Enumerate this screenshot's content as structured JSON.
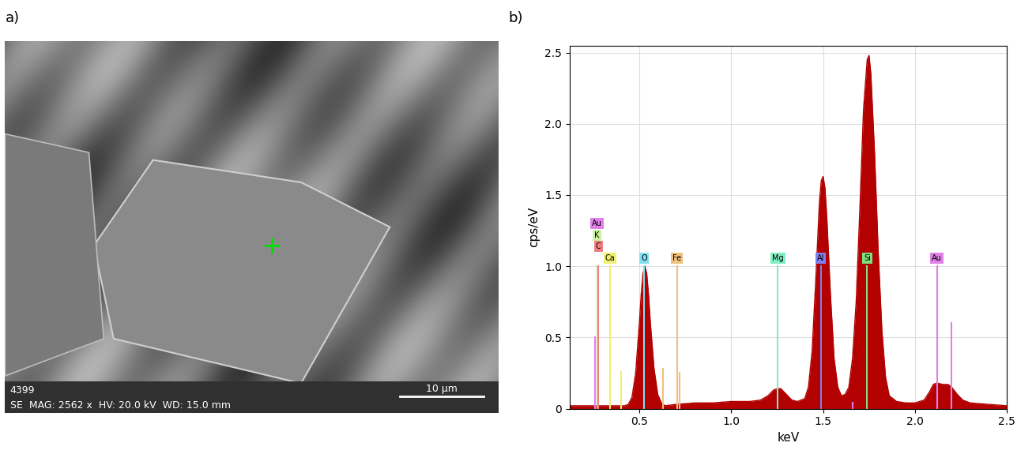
{
  "chart_data": [
    {
      "type": "image",
      "panel_label": "a)",
      "sample_id": "4399",
      "info_bar": "SE  MAG: 2562 x  HV: 20.0 kV  WD: 15.0 mm",
      "scale_bar": "10 µm"
    },
    {
      "type": "area",
      "panel_label": "b)",
      "xlabel": "keV",
      "ylabel": "cps/eV",
      "color": "#b30000",
      "x": [
        0.12,
        0.16,
        0.2,
        0.24,
        0.28,
        0.32,
        0.36,
        0.4,
        0.42,
        0.44,
        0.46,
        0.48,
        0.5,
        0.51,
        0.52,
        0.53,
        0.54,
        0.55,
        0.56,
        0.58,
        0.6,
        0.62,
        0.64,
        0.7,
        0.8,
        0.9,
        1.0,
        1.1,
        1.16,
        1.2,
        1.23,
        1.25,
        1.27,
        1.3,
        1.33,
        1.36,
        1.4,
        1.42,
        1.44,
        1.46,
        1.48,
        1.49,
        1.5,
        1.51,
        1.52,
        1.54,
        1.56,
        1.58,
        1.6,
        1.62,
        1.64,
        1.66,
        1.68,
        1.7,
        1.72,
        1.74,
        1.75,
        1.76,
        1.78,
        1.8,
        1.82,
        1.84,
        1.86,
        1.9,
        1.95,
        2.0,
        2.05,
        2.08,
        2.1,
        2.12,
        2.15,
        2.18,
        2.2,
        2.23,
        2.26,
        2.3,
        2.4,
        2.5
      ],
      "values": [
        0.02,
        0.02,
        0.02,
        0.02,
        0.02,
        0.02,
        0.02,
        0.02,
        0.02,
        0.03,
        0.08,
        0.25,
        0.6,
        0.8,
        0.95,
        1.0,
        0.95,
        0.8,
        0.6,
        0.28,
        0.1,
        0.04,
        0.02,
        0.03,
        0.04,
        0.04,
        0.05,
        0.05,
        0.06,
        0.09,
        0.13,
        0.14,
        0.14,
        0.1,
        0.06,
        0.05,
        0.07,
        0.15,
        0.4,
        0.9,
        1.45,
        1.6,
        1.63,
        1.55,
        1.35,
        0.8,
        0.35,
        0.15,
        0.09,
        0.1,
        0.15,
        0.35,
        0.75,
        1.4,
        2.1,
        2.45,
        2.48,
        2.35,
        1.8,
        1.1,
        0.55,
        0.22,
        0.09,
        0.05,
        0.04,
        0.04,
        0.06,
        0.12,
        0.17,
        0.18,
        0.17,
        0.17,
        0.15,
        0.1,
        0.06,
        0.04,
        0.03,
        0.02
      ],
      "xlim": [
        0.12,
        2.5
      ],
      "ylim": [
        0,
        2.55
      ],
      "xticks": [
        0.5,
        1.0,
        1.5,
        2.0,
        2.5
      ],
      "yticks": [
        0,
        0.5,
        1.0,
        1.5,
        2.0,
        2.5
      ],
      "grid": true,
      "markers": [
        {
          "label": "Au",
          "x": 0.27,
          "height": 1.0,
          "color": "#e080e8"
        },
        {
          "label": "K",
          "x": 0.27,
          "height": 1.0,
          "color": "#c8f0a0"
        },
        {
          "label": "C",
          "x": 0.277,
          "height": 1.0,
          "color": "#f08080"
        },
        {
          "label": "Ca",
          "x": 0.341,
          "height": 1.0,
          "color": "#f0f070"
        },
        {
          "label": "O",
          "x": 0.525,
          "height": 1.0,
          "color": "#80e0f0"
        },
        {
          "label": "Fe",
          "x": 0.705,
          "height": 1.0,
          "color": "#f0c080"
        },
        {
          "label": "Mg",
          "x": 1.254,
          "height": 1.0,
          "color": "#80f0c0"
        },
        {
          "label": "Al",
          "x": 1.487,
          "height": 1.0,
          "color": "#8080f0"
        },
        {
          "label": "Si",
          "x": 1.74,
          "height": 1.0,
          "color": "#80e080"
        },
        {
          "label": "Au",
          "x": 2.12,
          "height": 1.0,
          "color": "#e080e8"
        }
      ],
      "lines": [
        {
          "x": 0.26,
          "height": 0.5,
          "color": "#e080e8"
        },
        {
          "x": 0.4,
          "height": 0.26,
          "color": "#f0f070"
        },
        {
          "x": 0.63,
          "height": 0.28,
          "color": "#f0c080"
        },
        {
          "x": 0.72,
          "height": 0.25,
          "color": "#f0c080"
        },
        {
          "x": 1.66,
          "height": 0.04,
          "color": "#e080e8"
        },
        {
          "x": 2.2,
          "height": 0.6,
          "color": "#e080e8"
        }
      ]
    }
  ]
}
